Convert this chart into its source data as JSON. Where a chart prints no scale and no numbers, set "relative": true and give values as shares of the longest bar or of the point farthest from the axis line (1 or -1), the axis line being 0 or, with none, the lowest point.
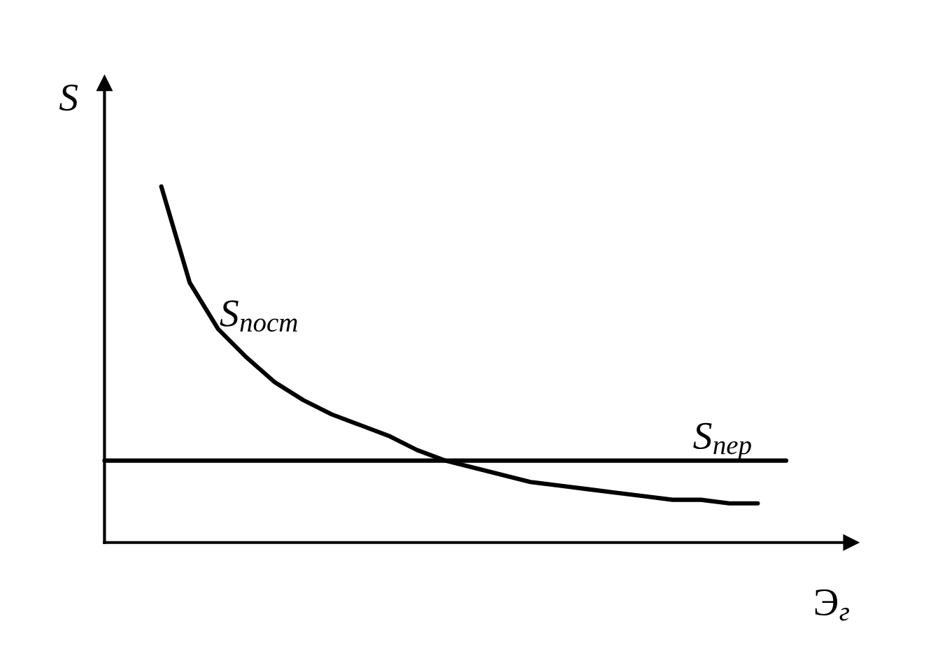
{
  "chart_data": {
    "type": "line",
    "relative": true,
    "tick_labels": false,
    "xlabel": "Э$_{г}$",
    "ylabel": "S",
    "categories": [
      null,
      null,
      null,
      null,
      null,
      null,
      null,
      null,
      null,
      null,
      null,
      null,
      null,
      null,
      null,
      null,
      null,
      null,
      null,
      null,
      null,
      null,
      null,
      null,
      null
    ],
    "series": [
      {
        "name": "S$_{пост}$",
        "color": "#000000",
        "values": [
          null,
          null,
          1.0,
          0.73,
          0.6,
          0.52,
          0.45,
          0.4,
          0.36,
          0.33,
          0.3,
          0.26,
          0.23,
          0.21,
          0.19,
          0.17,
          0.16,
          0.15,
          0.14,
          0.13,
          0.12,
          0.12,
          0.11,
          0.11,
          null
        ]
      },
      {
        "name": "S$_{пер}$",
        "color": "#000000",
        "values": [
          0.23,
          0.23,
          0.23,
          0.23,
          0.23,
          0.23,
          0.23,
          0.23,
          0.23,
          0.23,
          0.23,
          0.23,
          0.23,
          0.23,
          0.23,
          0.23,
          0.23,
          0.23,
          0.23,
          0.23,
          0.23,
          0.23,
          0.23,
          0.23,
          0.23
        ]
      }
    ]
  }
}
